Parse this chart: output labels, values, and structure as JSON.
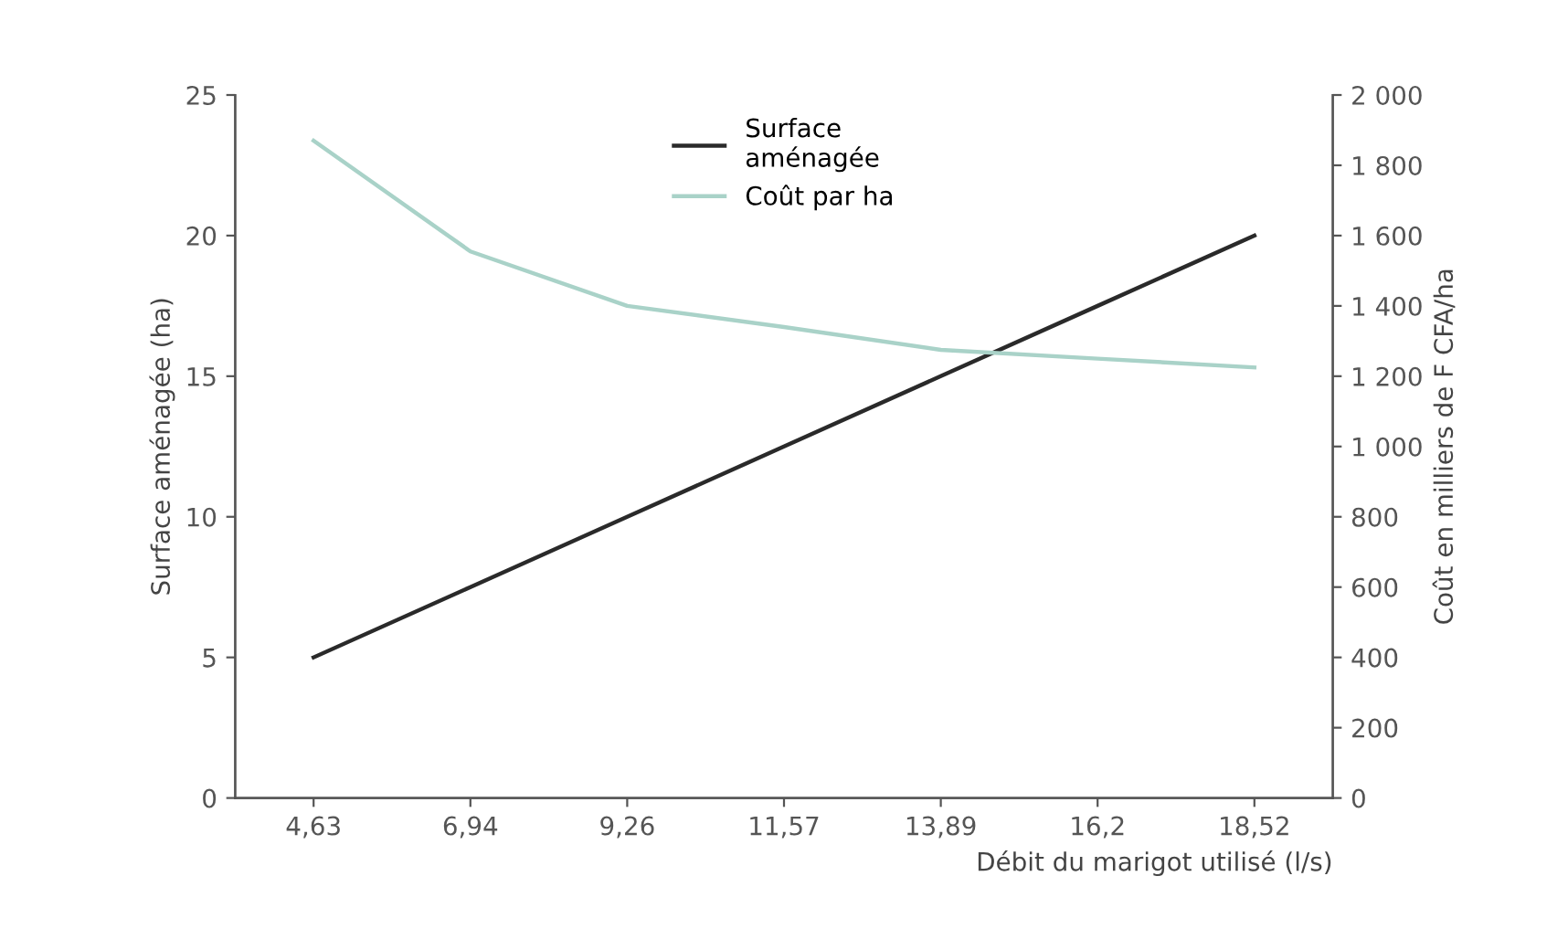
{
  "chart_data": {
    "type": "line",
    "xlabel": "Débit du marigot utilisé (l/s)",
    "ylabel": "Surface aménagée (ha)",
    "y2label": "Coût en milliers de F CFA/ha",
    "categories": [
      "4,63",
      "6,94",
      "9,26",
      "11,57",
      "13,89",
      "16,2",
      "18,52"
    ],
    "series": [
      {
        "name": "Surface\naménagée",
        "color": "#2a2a2a",
        "values": [
          5,
          7.5,
          10,
          12.5,
          15,
          17.5,
          20
        ]
      },
      {
        "name": "Coût par ha",
        "color": "#a9d2c8",
        "axis": "y2",
        "values": [
          1870,
          1555,
          1400,
          1340,
          1275,
          1250,
          1225
        ]
      }
    ],
    "ylim": [
      0,
      25
    ],
    "yticks": [
      0,
      5,
      10,
      15,
      20,
      25
    ],
    "y2lim": [
      0,
      2000
    ],
    "y2ticks": [
      {
        "value": 0,
        "label": "0"
      },
      {
        "value": 200,
        "label": "200"
      },
      {
        "value": 400,
        "label": "400"
      },
      {
        "value": 600,
        "label": "600"
      },
      {
        "value": 800,
        "label": "800"
      },
      {
        "value": 1000,
        "label": "1 000"
      },
      {
        "value": 1200,
        "label": "1 200"
      },
      {
        "value": 1400,
        "label": "1 400"
      },
      {
        "value": 1600,
        "label": "1 600"
      },
      {
        "value": 1800,
        "label": "1 800"
      },
      {
        "value": 2000,
        "label": "2 000"
      }
    ],
    "legend": "top",
    "grid": false,
    "marker": "none",
    "line_style": "solid"
  }
}
